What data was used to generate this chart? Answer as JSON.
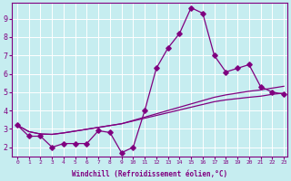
{
  "xlabel": "Windchill (Refroidissement éolien,°C)",
  "bg_color": "#c6edf0",
  "line_color": "#800080",
  "grid_color": "#ffffff",
  "xmin": 0,
  "xmax": 23,
  "ymin": 1.5,
  "ymax": 9.85,
  "yticks": [
    2,
    3,
    4,
    5,
    6,
    7,
    8,
    9
  ],
  "x_main": [
    0,
    1,
    2,
    3,
    4,
    5,
    6,
    7,
    8,
    9,
    10,
    11,
    12,
    13,
    14,
    15,
    16,
    17,
    18,
    19,
    20,
    21,
    22,
    23
  ],
  "y_main": [
    3.2,
    2.6,
    2.6,
    2.0,
    2.2,
    2.2,
    2.2,
    2.9,
    2.8,
    1.7,
    2.0,
    4.0,
    6.3,
    7.4,
    8.2,
    9.6,
    9.3,
    7.0,
    6.1,
    6.3,
    6.5,
    5.3,
    5.0,
    4.9
  ],
  "y_trend_upper": [
    3.2,
    2.85,
    2.72,
    2.7,
    2.78,
    2.88,
    2.98,
    3.08,
    3.18,
    3.28,
    3.46,
    3.64,
    3.82,
    4.0,
    4.18,
    4.36,
    4.54,
    4.72,
    4.85,
    4.95,
    5.05,
    5.12,
    5.22,
    5.32
  ],
  "y_trend_lower": [
    3.2,
    2.85,
    2.72,
    2.7,
    2.78,
    2.88,
    2.98,
    3.08,
    3.18,
    3.28,
    3.43,
    3.58,
    3.73,
    3.88,
    4.03,
    4.18,
    4.33,
    4.48,
    4.58,
    4.65,
    4.72,
    4.78,
    4.88,
    4.95
  ],
  "figsize": [
    3.2,
    2.0
  ],
  "dpi": 100,
  "xlabel_fontsize": 5.5,
  "ytick_fontsize": 6.0,
  "xtick_fontsize": 4.5,
  "linewidth": 0.9,
  "markersize": 2.8
}
